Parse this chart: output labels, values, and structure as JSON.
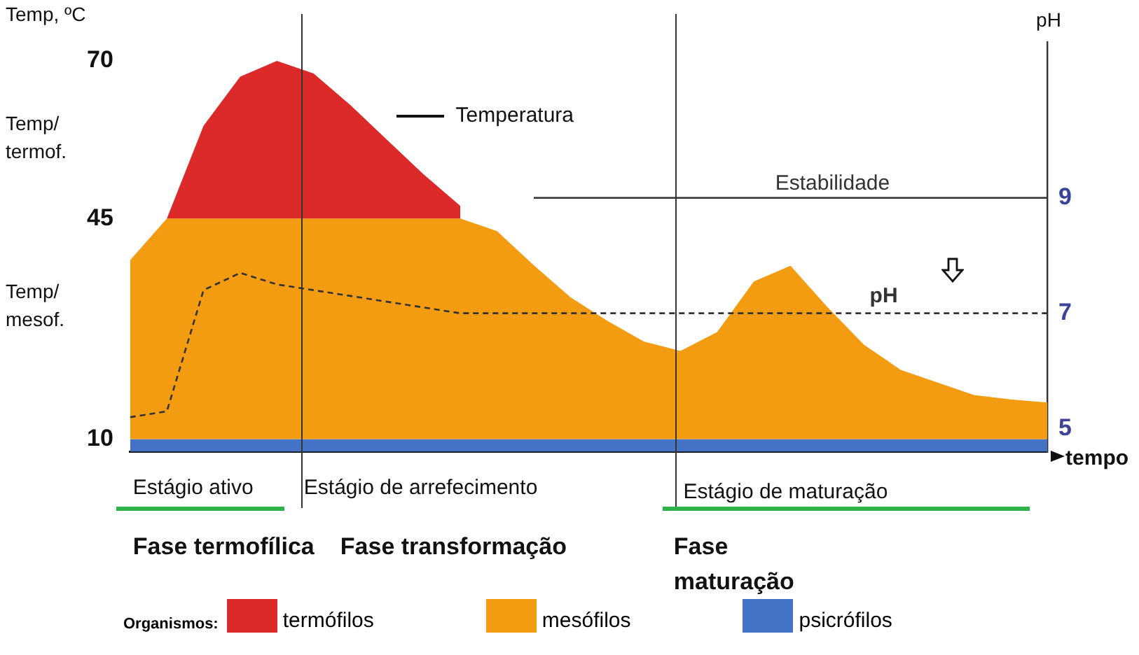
{
  "chart_data": {
    "type": "area",
    "ylabel": "Temp, ºC",
    "y2label": "pH",
    "xlabel": "tempo",
    "legend_title": "Organismos:",
    "categories": [
      null,
      null,
      null,
      null,
      null,
      null,
      null,
      null,
      null,
      null,
      null,
      null,
      null,
      null,
      null,
      null,
      null,
      null,
      null,
      null,
      null,
      null,
      null,
      null,
      null,
      null
    ],
    "series": [
      {
        "name": "termófilos",
        "color": "#dc2a2a",
        "values": [
          null,
          45,
          59.7,
          67.5,
          70,
          68,
          63,
          57.5,
          52,
          47,
          null,
          null,
          null,
          null,
          null,
          null,
          null,
          null,
          null,
          null,
          null,
          null,
          null,
          null,
          null,
          null
        ]
      },
      {
        "name": "mesófilos",
        "color": "#f39c12",
        "values": [
          38.4,
          45,
          45,
          45,
          45,
          45,
          45,
          45,
          45,
          45,
          43,
          37.6,
          32.5,
          28.8,
          25.5,
          24,
          27,
          35,
          37.5,
          31,
          25,
          21,
          19,
          17,
          16.3,
          15.8
        ]
      },
      {
        "name": "psicrófilos",
        "color": "#4472c4",
        "values": [
          10,
          10,
          10,
          10,
          10,
          10,
          10,
          10,
          10,
          10,
          10,
          10,
          10,
          10,
          10,
          10,
          10,
          10,
          10,
          10,
          10,
          10,
          10,
          10,
          10,
          10
        ]
      },
      {
        "name": "pH",
        "type": "line",
        "axis": "y2",
        "color": "#333333",
        "line_style": "dashed",
        "values": [
          5.2,
          5.3,
          7.4,
          7.7,
          7.5,
          7.4,
          7.3,
          7.2,
          7.1,
          7,
          7,
          7,
          7,
          7,
          7,
          7,
          7,
          7,
          7,
          7,
          7,
          7,
          7,
          7,
          7,
          7
        ]
      },
      {
        "name": "Estabilidade",
        "type": "line",
        "axis": "y2",
        "color": "#333333",
        "line_style": "solid",
        "values": [
          null,
          null,
          null,
          null,
          null,
          null,
          null,
          null,
          null,
          null,
          null,
          9,
          9,
          9,
          9,
          9,
          9,
          9,
          9,
          9,
          9,
          9,
          9,
          9,
          9,
          9
        ]
      }
    ],
    "ylim": [
      8,
      73
    ],
    "yticks": [
      10,
      45,
      70
    ],
    "y2lim": [
      4.6,
      11.7
    ],
    "y2ticks": [
      5,
      7,
      9
    ],
    "annotations": [
      "Temperatura",
      "Temp/ termof.",
      "Temp/ mesof.",
      "Estágio ativo",
      "Estágio de arrefecimento",
      "Estágio de maturação",
      "Fase termofílica",
      "Fase transformação",
      "Fase maturação"
    ],
    "grid": false,
    "legend": "bottom",
    "marker": "none"
  }
}
